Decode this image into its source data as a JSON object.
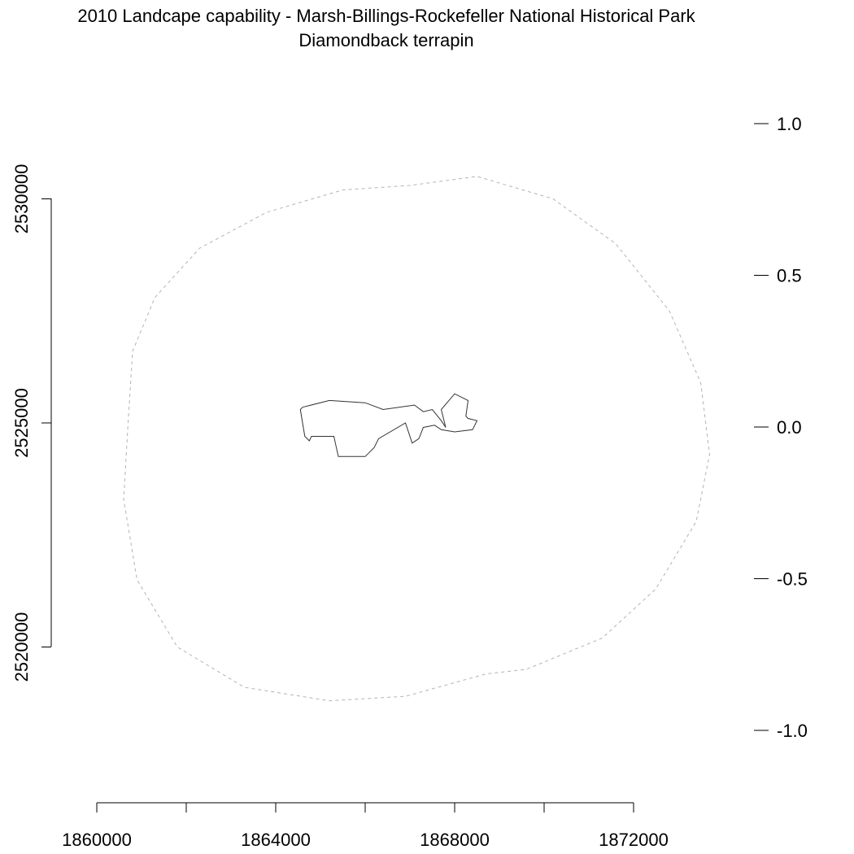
{
  "chart_data": {
    "type": "map",
    "title": "2010 Landcape capability - Marsh-Billings-Rockefeller National Historical Park",
    "subtitle": "Diamondback terrapin",
    "x_axis": {
      "ticks": [
        1860000,
        1862000,
        1864000,
        1866000,
        1868000,
        1870000,
        1872000
      ],
      "tick_labels": [
        "1860000",
        "1864000",
        "1868000",
        "1872000"
      ]
    },
    "y_axis": {
      "ticks": [
        2520000,
        2525000,
        2530000
      ],
      "tick_labels": [
        "2520000",
        "2525000",
        "2530000"
      ]
    },
    "legend_scale": {
      "ticks": [
        1.0,
        0.5,
        0.0,
        -0.5,
        -1.0
      ],
      "tick_labels": [
        "1.0",
        "0.5",
        "0.0",
        "-0.5",
        "-1.0"
      ]
    },
    "series": [
      {
        "style": "dashed",
        "color": "#b3b3b3",
        "points": [
          [
            1860700,
            2525000
          ],
          [
            1860800,
            2526600
          ],
          [
            1861300,
            2527800
          ],
          [
            1862300,
            2528900
          ],
          [
            1863800,
            2529700
          ],
          [
            1865500,
            2530200
          ],
          [
            1867000,
            2530300
          ],
          [
            1868500,
            2530500
          ],
          [
            1870200,
            2530000
          ],
          [
            1871600,
            2529000
          ],
          [
            1872800,
            2527500
          ],
          [
            1873500,
            2525900
          ],
          [
            1873700,
            2524300
          ],
          [
            1873400,
            2522800
          ],
          [
            1872500,
            2521300
          ],
          [
            1871300,
            2520200
          ],
          [
            1869600,
            2519500
          ],
          [
            1868700,
            2519400
          ],
          [
            1866900,
            2518900
          ],
          [
            1865200,
            2518800
          ],
          [
            1863300,
            2519100
          ],
          [
            1861800,
            2520000
          ],
          [
            1860900,
            2521500
          ],
          [
            1860600,
            2523300
          ],
          [
            1860700,
            2525000
          ]
        ]
      },
      {
        "style": "solid",
        "color": "#333333",
        "points": [
          [
            1864600,
            2525350
          ],
          [
            1865200,
            2525500
          ],
          [
            1866000,
            2525450
          ],
          [
            1866400,
            2525300
          ],
          [
            1867100,
            2525400
          ],
          [
            1867300,
            2525250
          ],
          [
            1867500,
            2525300
          ],
          [
            1867700,
            2525050
          ],
          [
            1867800,
            2524900
          ],
          [
            1867700,
            2525300
          ],
          [
            1868000,
            2525650
          ],
          [
            1868300,
            2525500
          ],
          [
            1868250,
            2525150
          ],
          [
            1868300,
            2525100
          ],
          [
            1868500,
            2525050
          ],
          [
            1868400,
            2524850
          ],
          [
            1868000,
            2524800
          ],
          [
            1867700,
            2524850
          ],
          [
            1867550,
            2524950
          ],
          [
            1867300,
            2524900
          ],
          [
            1867200,
            2524650
          ],
          [
            1867050,
            2524550
          ],
          [
            1866900,
            2525000
          ],
          [
            1866300,
            2524650
          ],
          [
            1866200,
            2524450
          ],
          [
            1866000,
            2524250
          ],
          [
            1865400,
            2524250
          ],
          [
            1865300,
            2524700
          ],
          [
            1864800,
            2524700
          ],
          [
            1864750,
            2524600
          ],
          [
            1864650,
            2524700
          ],
          [
            1864600,
            2525000
          ],
          [
            1864550,
            2525300
          ],
          [
            1864600,
            2525350
          ]
        ]
      }
    ]
  }
}
